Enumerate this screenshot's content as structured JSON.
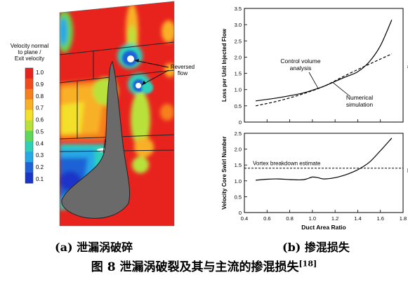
{
  "panel_a": {
    "legend_title": [
      "Velocity normal",
      "to plane /",
      "Exit velocity"
    ],
    "legend_ticks": [
      "1.0",
      "0.9",
      "0.8",
      "0.7",
      "0.6",
      "0.5",
      "0.4",
      "0.3",
      "0.2",
      "0.1"
    ],
    "legend_colors": [
      "#e8231e",
      "#f24a1e",
      "#f6801e",
      "#f8b025",
      "#f3e02a",
      "#b8e23a",
      "#5fd85a",
      "#2ed0b8",
      "#26a8e6",
      "#1f62d6",
      "#1a36c8"
    ],
    "annotation": [
      "Reversed",
      "flow"
    ]
  },
  "captions": {
    "a": "(a)  泄漏涡破碎",
    "b": "(b)  掺混损失",
    "figure": "图 8 泄漏涡破裂及其与主流的掺混损失",
    "figure_ref": "[18]"
  },
  "chart_data": [
    {
      "type": "line",
      "xlim": [
        0.4,
        1.8
      ],
      "ylim": [
        0,
        3.5
      ],
      "yticks": [
        "0",
        "0.5",
        "1.0",
        "1.5",
        "2.0",
        "2.5",
        "3.0",
        "3.5"
      ],
      "ylabel": "Loss per Unit Injected Flow",
      "panel_label": "a)",
      "series": [
        {
          "name": "Control volume analysis",
          "style": "dashed",
          "x": [
            0.5,
            0.7,
            0.9,
            1.1,
            1.3,
            1.5,
            1.7
          ],
          "y": [
            0.5,
            0.65,
            0.85,
            1.1,
            1.45,
            1.78,
            2.1
          ]
        },
        {
          "name": "Numerical simulation",
          "style": "solid",
          "x": [
            0.5,
            0.7,
            0.9,
            1.0,
            1.1,
            1.2,
            1.3,
            1.4,
            1.5,
            1.6,
            1.7
          ],
          "y": [
            0.65,
            0.75,
            0.88,
            0.98,
            1.1,
            1.25,
            1.4,
            1.55,
            1.85,
            2.35,
            3.15
          ]
        }
      ],
      "labels": {
        "cv_line1": "Control volume",
        "cv_line2": "analysis",
        "ns_line1": "Numerical",
        "ns_line2": "simulation"
      }
    },
    {
      "type": "line",
      "xlim": [
        0.4,
        1.8
      ],
      "ylim": [
        0,
        2.5
      ],
      "xticks": [
        "0.4",
        "0.6",
        "0.8",
        "1.0",
        "1.2",
        "1.4",
        "1.6",
        "1.8"
      ],
      "yticks": [
        "0",
        "0.5",
        "1.0",
        "1.5",
        "2.0",
        "2.5"
      ],
      "xlabel": "Duct Area Ratio",
      "ylabel": "Velocity Core Swirl Number",
      "panel_label": "b)",
      "threshold": {
        "label": "Vortex breakdown estimate",
        "y": 1.4
      },
      "series": [
        {
          "style": "solid",
          "x": [
            0.5,
            0.6,
            0.7,
            0.8,
            0.9,
            0.95,
            1.0,
            1.05,
            1.1,
            1.2,
            1.3,
            1.4,
            1.5,
            1.6,
            1.7
          ],
          "y": [
            1.02,
            1.05,
            1.06,
            1.04,
            1.03,
            1.06,
            1.12,
            1.1,
            1.06,
            1.1,
            1.2,
            1.35,
            1.58,
            1.95,
            2.35
          ]
        }
      ]
    }
  ]
}
